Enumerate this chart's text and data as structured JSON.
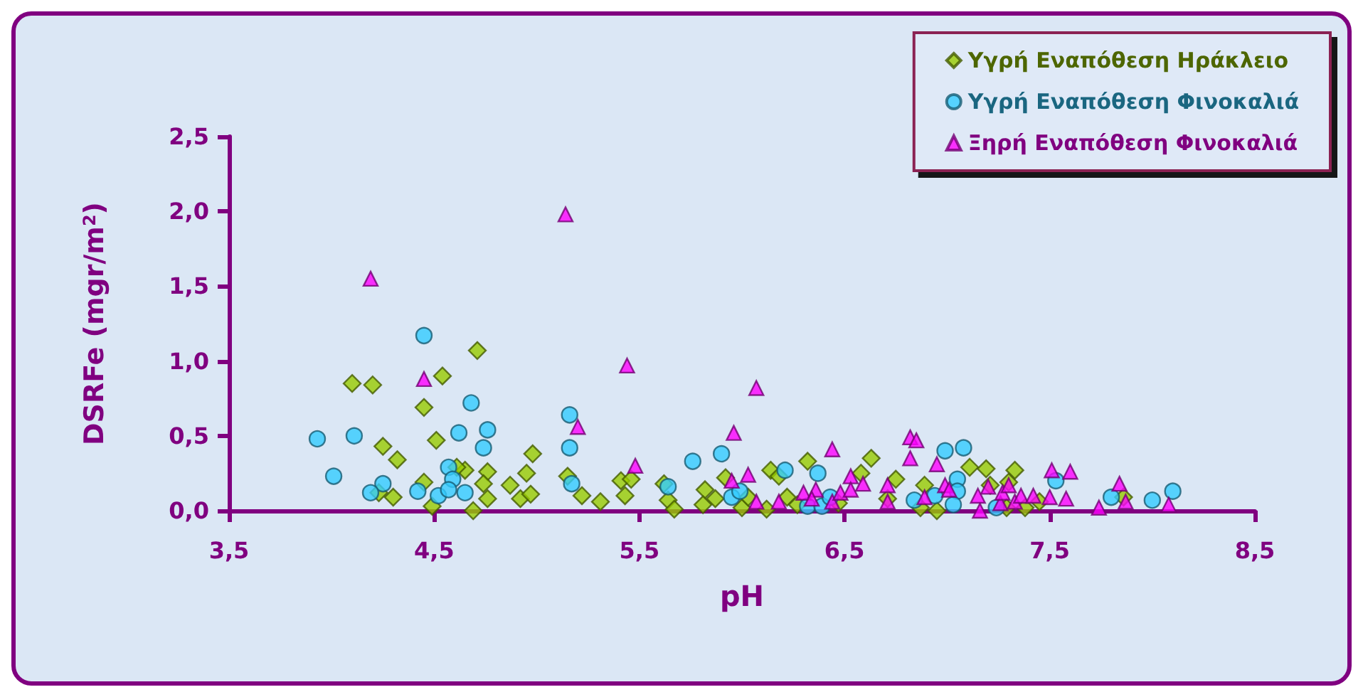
{
  "chart_data": {
    "type": "scatter",
    "xlabel": "pH",
    "ylabel": "DSRFe (mgr/m$^{2}$)",
    "xlim": [
      3.5,
      8.5
    ],
    "ylim": [
      0,
      2.5
    ],
    "xticks": [
      {
        "value": 3.5,
        "label": "3,5"
      },
      {
        "value": 4.5,
        "label": "4,5"
      },
      {
        "value": 5.5,
        "label": "5,5"
      },
      {
        "value": 6.5,
        "label": "6,5"
      },
      {
        "value": 7.5,
        "label": "7,5"
      },
      {
        "value": 8.5,
        "label": "8,5"
      }
    ],
    "yticks": [
      {
        "value": 0,
        "label": "0,0"
      },
      {
        "value": 0.5,
        "label": "0,5"
      },
      {
        "value": 1,
        "label": "1,0"
      },
      {
        "value": 1.5,
        "label": "1,5"
      },
      {
        "value": 2,
        "label": "2,0"
      },
      {
        "value": 2.5,
        "label": "2,5"
      }
    ],
    "grid": false,
    "legend": "top right",
    "series": [
      {
        "name": "Υγρή Εναπόθεση Ηράκλειο",
        "color": "#99cc00",
        "marker": "diamond",
        "x": [
          4.1,
          4.2,
          4.71,
          4.54,
          4.45,
          4.51,
          4.25,
          4.32,
          4.98,
          4.45,
          4.3,
          4.49,
          4.69,
          4.76,
          4.65,
          4.76,
          4.74,
          4.61,
          4.87,
          4.95,
          4.92,
          4.97,
          4.23,
          5.15,
          5.22,
          5.31,
          5.41,
          5.46,
          5.43,
          5.62,
          5.64,
          5.67,
          5.82,
          5.81,
          5.87,
          5.92,
          6.0,
          6.03,
          6.14,
          6.18,
          6.12,
          6.22,
          6.27,
          6.32,
          6.47,
          6.58,
          6.63,
          6.75,
          6.71,
          6.89,
          6.95,
          7.11,
          7.19,
          7.33,
          7.21,
          7.3,
          7.29,
          7.38,
          7.45,
          7.86,
          6.87
        ],
        "values": [
          0.85,
          0.84,
          1.07,
          0.9,
          0.69,
          0.47,
          0.43,
          0.34,
          0.38,
          0.19,
          0.09,
          0.03,
          0.0,
          0.08,
          0.27,
          0.26,
          0.18,
          0.29,
          0.17,
          0.25,
          0.08,
          0.11,
          0.12,
          0.23,
          0.1,
          0.06,
          0.2,
          0.21,
          0.1,
          0.18,
          0.07,
          0.01,
          0.14,
          0.04,
          0.08,
          0.22,
          0.02,
          0.09,
          0.27,
          0.23,
          0.01,
          0.09,
          0.04,
          0.33,
          0.05,
          0.25,
          0.35,
          0.21,
          0.08,
          0.17,
          0.0,
          0.29,
          0.28,
          0.27,
          0.17,
          0.19,
          0.02,
          0.02,
          0.06,
          0.09,
          0.02
        ]
      },
      {
        "name": "Υγρή Εναπόθεση Φινοκαλιά",
        "color": "#33ccff",
        "marker": "circle",
        "x": [
          4.45,
          4.68,
          3.93,
          4.11,
          4.62,
          4.76,
          4.74,
          4.01,
          4.25,
          4.19,
          4.42,
          4.52,
          4.57,
          4.59,
          4.57,
          4.65,
          5.16,
          5.16,
          5.17,
          5.64,
          5.76,
          5.9,
          5.95,
          5.99,
          6.21,
          6.37,
          6.32,
          6.39,
          6.43,
          6.84,
          6.99,
          7.08,
          7.05,
          7.05,
          6.94,
          7.03,
          7.24,
          7.53,
          7.8,
          8.0,
          8.1
        ],
        "values": [
          1.17,
          0.72,
          0.48,
          0.5,
          0.52,
          0.54,
          0.42,
          0.23,
          0.18,
          0.12,
          0.13,
          0.1,
          0.29,
          0.21,
          0.14,
          0.12,
          0.64,
          0.42,
          0.18,
          0.16,
          0.33,
          0.38,
          0.09,
          0.13,
          0.27,
          0.25,
          0.03,
          0.03,
          0.09,
          0.07,
          0.4,
          0.42,
          0.21,
          0.13,
          0.1,
          0.04,
          0.02,
          0.2,
          0.09,
          0.07,
          0.13
        ]
      },
      {
        "name": "Ξηρή Εναπόθεση Φινοκαλιά",
        "color": "#ff00ff",
        "marker": "triangle",
        "x": [
          4.19,
          5.14,
          4.45,
          5.44,
          6.07,
          5.2,
          5.48,
          5.96,
          6.03,
          5.95,
          6.44,
          6.07,
          6.18,
          6.3,
          6.36,
          6.34,
          6.44,
          6.48,
          6.53,
          6.53,
          6.59,
          6.71,
          6.71,
          6.82,
          6.85,
          6.82,
          6.95,
          6.89,
          6.99,
          7.01,
          7.16,
          7.2,
          7.15,
          7.26,
          7.27,
          7.3,
          7.33,
          7.36,
          7.42,
          7.5,
          7.58,
          7.51,
          7.6,
          7.74,
          7.84,
          7.87,
          8.08
        ],
        "values": [
          1.55,
          1.98,
          0.88,
          0.97,
          0.82,
          0.56,
          0.3,
          0.52,
          0.24,
          0.2,
          0.41,
          0.06,
          0.06,
          0.12,
          0.14,
          0.08,
          0.06,
          0.12,
          0.23,
          0.14,
          0.18,
          0.17,
          0.06,
          0.49,
          0.47,
          0.35,
          0.31,
          0.09,
          0.17,
          0.14,
          0.0,
          0.16,
          0.1,
          0.05,
          0.12,
          0.17,
          0.06,
          0.1,
          0.1,
          0.09,
          0.08,
          0.27,
          0.26,
          0.02,
          0.18,
          0.06,
          0.04
        ]
      }
    ]
  }
}
